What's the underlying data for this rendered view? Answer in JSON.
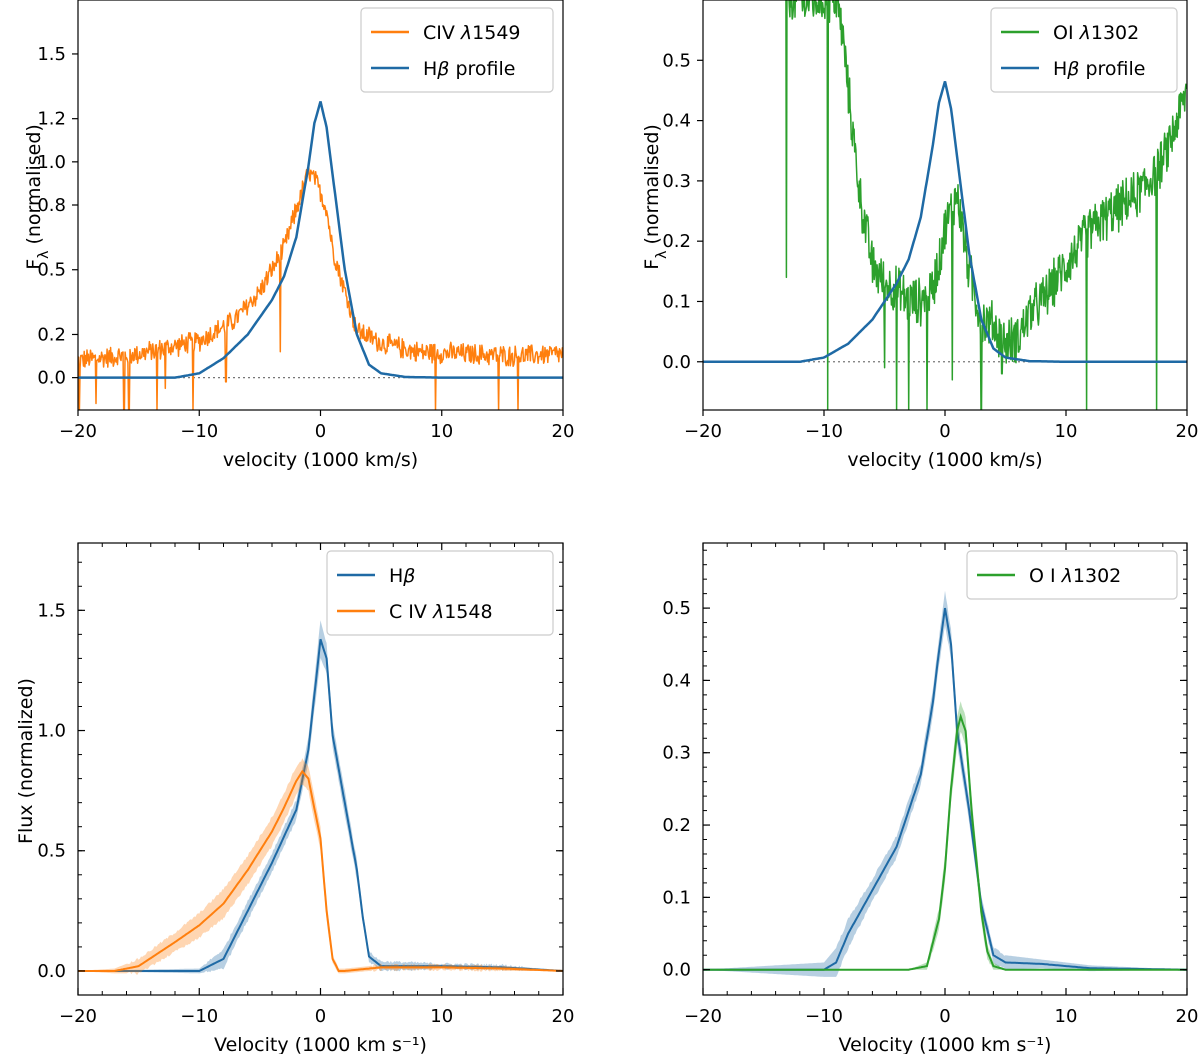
{
  "figure": {
    "description_layout": "2x2 grid of spectral line profile panels"
  },
  "chart_data": [
    {
      "id": "top-left",
      "type": "line",
      "xlabel": "velocity (1000 km/s)",
      "ylabel": "F_λ (normalised)",
      "xlim": [
        -20,
        20
      ],
      "ylim": [
        -0.15,
        1.75
      ],
      "xticks": [
        -20,
        -10,
        0,
        10,
        20
      ],
      "yticks": [
        0.0,
        0.2,
        0.5,
        0.8,
        1.0,
        1.2,
        1.5
      ],
      "ytick_labels": [
        "0.0",
        "0.2",
        "0.5",
        "0.8",
        "1.0",
        "1.2",
        "1.5"
      ],
      "legend_position": "top-right",
      "zero_line": true,
      "series": [
        {
          "name": "CIV λ1549",
          "legend_main": "CIV ",
          "legend_italic": "λ",
          "legend_tail": "1549",
          "color": "#ff7f0e",
          "style": "noisy",
          "noise": 0.055,
          "x": [
            -20,
            -15,
            -10,
            -7,
            -5,
            -3,
            -2,
            -1,
            -0.5,
            0,
            0.5,
            1,
            2,
            3,
            5,
            8,
            12,
            16,
            20
          ],
          "y": [
            0.08,
            0.11,
            0.17,
            0.27,
            0.4,
            0.6,
            0.78,
            0.95,
            0.92,
            0.86,
            0.78,
            0.6,
            0.4,
            0.22,
            0.16,
            0.12,
            0.11,
            0.1,
            0.11
          ],
          "dips": [
            [
              -19.9,
              -0.15
            ],
            [
              -18.5,
              -0.12
            ],
            [
              -16.2,
              -0.15
            ],
            [
              -15.8,
              -0.15
            ],
            [
              -13.5,
              -0.15
            ],
            [
              -12.8,
              -0.05
            ],
            [
              -10.5,
              -0.15
            ],
            [
              -7.8,
              -0.02
            ],
            [
              -3.3,
              0.12
            ],
            [
              9.5,
              -0.15
            ],
            [
              14.7,
              -0.15
            ],
            [
              16.3,
              -0.15
            ]
          ]
        },
        {
          "name": "Hβ profile",
          "legend_main": "H",
          "legend_italic": "β",
          "legend_tail": " profile",
          "color": "#1f6aa5",
          "style": "smooth",
          "x": [
            -20,
            -12,
            -10,
            -8,
            -6,
            -4,
            -3,
            -2,
            -1,
            -0.5,
            0,
            0.5,
            1,
            2,
            3,
            4,
            5,
            7,
            10,
            20
          ],
          "y": [
            0,
            0,
            0.02,
            0.09,
            0.2,
            0.36,
            0.47,
            0.65,
            0.98,
            1.18,
            1.28,
            1.16,
            0.94,
            0.5,
            0.2,
            0.06,
            0.02,
            0.003,
            0,
            0
          ]
        }
      ]
    },
    {
      "id": "top-right",
      "type": "line",
      "xlabel": "velocity (1000 km/s)",
      "ylabel": "F_λ (normalised)",
      "xlim": [
        -20,
        20
      ],
      "ylim": [
        -0.08,
        0.6
      ],
      "xticks": [
        -20,
        -10,
        0,
        10,
        20
      ],
      "yticks": [
        0.0,
        0.1,
        0.2,
        0.3,
        0.4,
        0.5
      ],
      "ytick_labels": [
        "0.0",
        "0.1",
        "0.2",
        "0.3",
        "0.4",
        "0.5"
      ],
      "legend_position": "top-right",
      "zero_line": true,
      "series": [
        {
          "name": "OI λ1302",
          "legend_main": "OI ",
          "legend_italic": "λ",
          "legend_tail": "1302",
          "color": "#2ca02c",
          "style": "noisy",
          "noise": 0.045,
          "x": [
            -13.2,
            -13,
            -12,
            -10,
            -9.6,
            -9,
            -8.5,
            -8,
            -7,
            -6,
            -5,
            -4,
            -3,
            -2,
            -1,
            0,
            1,
            2,
            3,
            4,
            5,
            6,
            7,
            8,
            9,
            10,
            12,
            14,
            16,
            18,
            20
          ],
          "y": [
            0.6,
            0.6,
            0.6,
            0.6,
            0.6,
            0.6,
            0.55,
            0.45,
            0.27,
            0.16,
            0.13,
            0.12,
            0.1,
            0.1,
            0.12,
            0.22,
            0.28,
            0.15,
            0.07,
            0.06,
            0.03,
            0.04,
            0.08,
            0.1,
            0.13,
            0.16,
            0.22,
            0.25,
            0.28,
            0.33,
            0.45
          ],
          "dips": [
            [
              -13.1,
              0.14
            ],
            [
              -9.7,
              -0.08
            ],
            [
              -5.0,
              -0.01
            ],
            [
              -4.0,
              -0.08
            ],
            [
              -3.0,
              -0.08
            ],
            [
              -1.5,
              -0.08
            ],
            [
              0.6,
              -0.03
            ],
            [
              3.0,
              -0.08
            ],
            [
              4.7,
              -0.02
            ],
            [
              11.7,
              -0.08
            ],
            [
              17.5,
              -0.08
            ]
          ]
        },
        {
          "name": "Hβ profile",
          "legend_main": "H",
          "legend_italic": "β",
          "legend_tail": " profile",
          "color": "#1f6aa5",
          "style": "smooth",
          "x": [
            -20,
            -12,
            -10,
            -8,
            -6,
            -4,
            -3,
            -2,
            -1,
            -0.5,
            0,
            0.5,
            1,
            2,
            3,
            4,
            5,
            7,
            10,
            20
          ],
          "y": [
            0,
            0,
            0.007,
            0.03,
            0.07,
            0.13,
            0.17,
            0.24,
            0.36,
            0.43,
            0.465,
            0.42,
            0.34,
            0.18,
            0.07,
            0.022,
            0.007,
            0.001,
            0,
            0
          ]
        }
      ]
    },
    {
      "id": "bottom-left",
      "type": "line",
      "xlabel": "Velocity (1000 km s⁻¹)",
      "ylabel": "Flux (normalized)",
      "xlim": [
        -20,
        20
      ],
      "ylim": [
        -0.1,
        1.78
      ],
      "xticks": [
        -20,
        -10,
        0,
        10,
        20
      ],
      "yticks": [
        0.0,
        0.5,
        1.0,
        1.5
      ],
      "ytick_labels": [
        "0.0",
        "0.5",
        "1.0",
        "1.5"
      ],
      "legend_position": "top-right",
      "zero_line": false,
      "series": [
        {
          "name": "Hβ",
          "legend_main": "H",
          "legend_italic": "β",
          "legend_tail": "",
          "color": "#1f6aa5",
          "band_color": "#1f6aa5",
          "style": "band",
          "x": [
            -20,
            -10,
            -8,
            -6,
            -4,
            -2,
            -1,
            0,
            0.5,
            1,
            2,
            3,
            3.5,
            4,
            5,
            10,
            15,
            20
          ],
          "y": [
            0,
            0,
            0.05,
            0.25,
            0.45,
            0.67,
            0.92,
            1.38,
            1.3,
            0.98,
            0.7,
            0.42,
            0.22,
            0.06,
            0.02,
            0.02,
            0.015,
            0
          ],
          "err": [
            0,
            0.01,
            0.04,
            0.04,
            0.04,
            0.04,
            0.05,
            0.08,
            0.06,
            0.05,
            0.05,
            0.04,
            0.03,
            0.02,
            0.02,
            0.01,
            0.01,
            0
          ]
        },
        {
          "name": "CIV λ1548",
          "legend_main": "C IV ",
          "legend_italic": "λ",
          "legend_tail": "1548",
          "color": "#ff7f0e",
          "band_color": "#ff7f0e",
          "style": "band",
          "x": [
            -20,
            -17,
            -15,
            -12,
            -10,
            -8,
            -6,
            -4,
            -3,
            -2,
            -1.5,
            -1,
            0,
            0.5,
            1,
            1.5,
            2,
            5,
            10,
            15,
            20
          ],
          "y": [
            0,
            0,
            0.02,
            0.12,
            0.19,
            0.28,
            0.42,
            0.58,
            0.68,
            0.79,
            0.83,
            0.8,
            0.55,
            0.25,
            0.05,
            0.0,
            0.0,
            0.015,
            0.015,
            0.01,
            0
          ],
          "err": [
            0,
            0.01,
            0.03,
            0.04,
            0.05,
            0.06,
            0.06,
            0.06,
            0.06,
            0.06,
            0.05,
            0.05,
            0.05,
            0.04,
            0.02,
            0.01,
            0.01,
            0.01,
            0.01,
            0.01,
            0
          ]
        }
      ]
    },
    {
      "id": "bottom-right",
      "type": "line",
      "xlabel": "Velocity (1000 km s⁻¹)",
      "ylabel": "",
      "xlim": [
        -20,
        20
      ],
      "ylim": [
        -0.035,
        0.59
      ],
      "xticks": [
        -20,
        -10,
        0,
        10,
        20
      ],
      "yticks": [
        0.0,
        0.1,
        0.2,
        0.3,
        0.4,
        0.5
      ],
      "ytick_labels": [
        "0.0",
        "0.1",
        "0.2",
        "0.3",
        "0.4",
        "0.5"
      ],
      "legend_position": "top-right",
      "zero_line": false,
      "series": [
        {
          "name": "Hβ",
          "legend_hidden": true,
          "color": "#1f6aa5",
          "band_color": "#1f6aa5",
          "style": "band",
          "x": [
            -20,
            -10,
            -9,
            -8,
            -6,
            -4,
            -2,
            -1,
            -0.5,
            0,
            0.5,
            1,
            2,
            3,
            4,
            5,
            8,
            12,
            20
          ],
          "y": [
            0,
            0,
            0.01,
            0.05,
            0.11,
            0.17,
            0.27,
            0.37,
            0.44,
            0.5,
            0.45,
            0.33,
            0.22,
            0.09,
            0.02,
            0.01,
            0.008,
            0.002,
            0
          ],
          "err": [
            0,
            0.01,
            0.02,
            0.02,
            0.015,
            0.015,
            0.015,
            0.018,
            0.02,
            0.025,
            0.02,
            0.018,
            0.015,
            0.012,
            0.01,
            0.01,
            0.006,
            0.004,
            0
          ]
        },
        {
          "name": "OI λ1302",
          "legend_main": "O I ",
          "legend_italic": "λ",
          "legend_tail": "1302",
          "color": "#2ca02c",
          "band_color": "#2ca02c",
          "style": "band",
          "x": [
            -20,
            -3,
            -1.5,
            -0.5,
            0,
            0.5,
            1,
            1.3,
            1.7,
            2.2,
            3,
            3.5,
            4,
            5,
            20
          ],
          "y": [
            0,
            0,
            0.005,
            0.07,
            0.14,
            0.25,
            0.33,
            0.35,
            0.33,
            0.22,
            0.08,
            0.025,
            0.005,
            0,
            0
          ],
          "err": [
            0,
            0,
            0.005,
            0.015,
            0.02,
            0.02,
            0.02,
            0.02,
            0.02,
            0.02,
            0.015,
            0.01,
            0.005,
            0,
            0
          ]
        }
      ]
    }
  ]
}
